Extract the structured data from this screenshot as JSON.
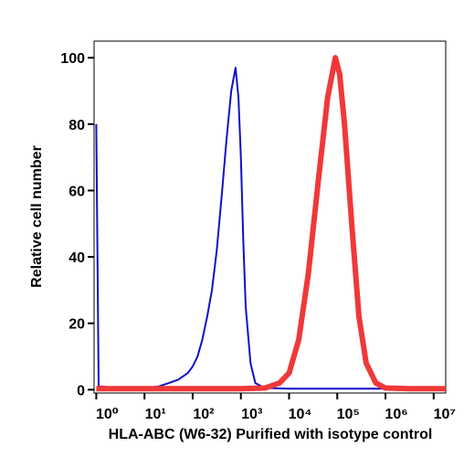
{
  "chart_data": {
    "type": "line",
    "xscale": "log",
    "xlabel": "HLA-ABC (W6-32) Purified with isotype control",
    "ylabel": "Relative cell number",
    "xlim": [
      0.9,
      17800000
    ],
    "ylim": [
      -1,
      105
    ],
    "xticks": [
      {
        "value": 1,
        "label": "10⁰"
      },
      {
        "value": 10,
        "label": "10¹"
      },
      {
        "value": 100,
        "label": "10²"
      },
      {
        "value": 1000,
        "label": "10³"
      },
      {
        "value": 10000,
        "label": "10⁴"
      },
      {
        "value": 100000,
        "label": "10⁵"
      },
      {
        "value": 1000000,
        "label": "10⁶"
      },
      {
        "value": 10000000,
        "label": "10⁷"
      }
    ],
    "yticks": [
      0,
      20,
      40,
      60,
      80,
      100
    ],
    "series": [
      {
        "color": "#1010c8",
        "width": 2,
        "x": [
          1,
          1.12,
          3.16,
          10,
          20,
          32,
          50,
          79,
          100,
          126,
          158,
          200,
          251,
          316,
          398,
          501,
          631,
          776,
          891,
          1000,
          1122,
          1259,
          1585,
          1995,
          3162,
          10000,
          100000,
          1000000,
          17800000
        ],
        "values": [
          80,
          1,
          0.5,
          0.5,
          1,
          2,
          3,
          5,
          7,
          10,
          15,
          22,
          30,
          42,
          58,
          75,
          90,
          97,
          88,
          70,
          45,
          25,
          8,
          2,
          0.5,
          0.3,
          0.3,
          0.3,
          0.3
        ]
      },
      {
        "color": "#f03838",
        "width": 6,
        "x": [
          1,
          1000,
          3162,
          6310,
          10000,
          15849,
          25119,
          39811,
          63096,
          91201,
          112202,
          141254,
          199526,
          281838,
          398107,
          630957,
          1000000,
          3162278,
          17800000
        ],
        "values": [
          0.3,
          0.3,
          0.5,
          2,
          5,
          15,
          35,
          62,
          88,
          100,
          95,
          80,
          50,
          22,
          8,
          2,
          0.5,
          0.3,
          0.3
        ]
      }
    ]
  }
}
